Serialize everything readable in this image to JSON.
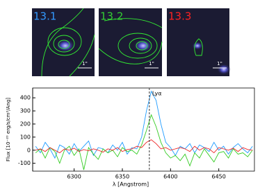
{
  "panels": [
    {
      "label": "13.1",
      "color": "#3399ff",
      "scale": "1\""
    },
    {
      "label": "13.2",
      "color": "#33cc33",
      "scale": "1\""
    },
    {
      "label": "13.3",
      "color": "#ff2222",
      "scale": "1\""
    }
  ],
  "chart_data": {
    "type": "line",
    "xlabel": "λ [Angstrom]",
    "ylabel": "Flux [10⁻²⁰ erg/s/cm²/Ang]",
    "annotation": "Lyα",
    "annotation_x": 6378,
    "x": [
      6260,
      6265,
      6270,
      6275,
      6280,
      6285,
      6290,
      6295,
      6300,
      6305,
      6310,
      6315,
      6320,
      6325,
      6330,
      6335,
      6340,
      6345,
      6350,
      6355,
      6360,
      6365,
      6370,
      6375,
      6380,
      6385,
      6390,
      6395,
      6400,
      6405,
      6410,
      6415,
      6420,
      6425,
      6430,
      6435,
      6440,
      6445,
      6450,
      6455,
      6460,
      6465,
      6470,
      6475,
      6480,
      6485
    ],
    "series": [
      {
        "color": "#1e9bff",
        "values": [
          30,
          -20,
          60,
          10,
          -60,
          40,
          20,
          -30,
          50,
          -10,
          30,
          70,
          -40,
          20,
          10,
          -20,
          40,
          0,
          60,
          -30,
          20,
          10,
          100,
          300,
          450,
          380,
          200,
          60,
          20,
          -40,
          30,
          10,
          50,
          -20,
          40,
          20,
          -10,
          60,
          0,
          30,
          -30,
          20,
          50,
          10,
          -20,
          30
        ]
      },
      {
        "color": "#33cc22",
        "values": [
          -20,
          10,
          -60,
          20,
          -10,
          -100,
          0,
          30,
          -40,
          10,
          -150,
          20,
          -30,
          -70,
          10,
          -20,
          0,
          -50,
          20,
          -10,
          0,
          -30,
          40,
          150,
          270,
          180,
          60,
          -20,
          -60,
          -40,
          -80,
          -30,
          -120,
          -20,
          -60,
          10,
          -40,
          -90,
          -20,
          -10,
          -60,
          10,
          -30,
          -20,
          -50,
          0
        ]
      },
      {
        "color": "#ee2222",
        "values": [
          0,
          10,
          -10,
          20,
          0,
          -20,
          10,
          0,
          15,
          -10,
          5,
          -5,
          10,
          0,
          -15,
          10,
          0,
          20,
          -10,
          5,
          10,
          30,
          20,
          60,
          80,
          50,
          10,
          20,
          0,
          10,
          20,
          10,
          -10,
          30,
          0,
          20,
          10,
          -20,
          20,
          10,
          0,
          15,
          -10,
          20,
          5,
          0
        ]
      }
    ],
    "xlim": [
      6257,
      6487
    ],
    "ylim": [
      -160,
      475
    ],
    "xticks": [
      6300,
      6350,
      6400,
      6450
    ],
    "yticks": [
      -100,
      0,
      100,
      200,
      300,
      400
    ]
  }
}
